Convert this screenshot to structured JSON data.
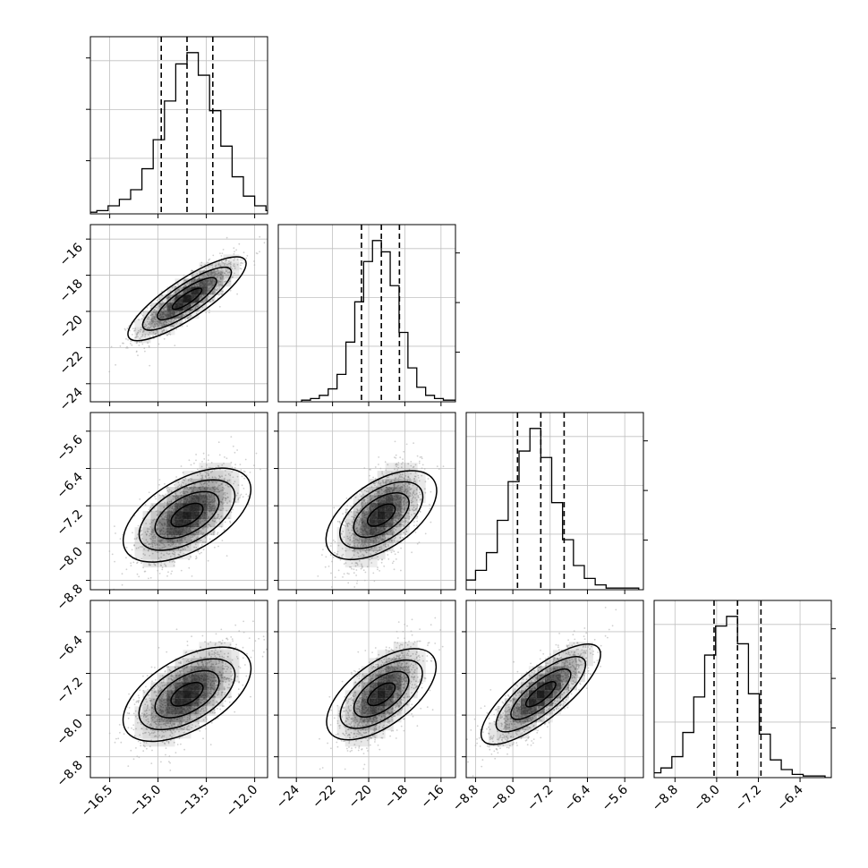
{
  "chart_data": {
    "type": "corner",
    "n_params": 4,
    "params": [
      {
        "median": -14.1,
        "q16": -14.9,
        "q84": -13.3,
        "sigma": 0.75,
        "range": [
          -17.1,
          -11.6
        ]
      },
      {
        "median": -19.3,
        "q16": -20.4,
        "q84": -18.3,
        "sigma": 1.05,
        "range": [
          -25.0,
          -15.2
        ]
      },
      {
        "median": -7.4,
        "q16": -7.9,
        "q84": -6.9,
        "sigma": 0.5,
        "range": [
          -9.0,
          -5.2
        ]
      },
      {
        "median": -7.6,
        "q16": -8.05,
        "q84": -7.15,
        "sigma": 0.45,
        "range": [
          -9.2,
          -5.8
        ]
      }
    ],
    "correlations": [
      [
        1.0,
        0.85,
        0.6,
        0.6
      ],
      [
        0.85,
        1.0,
        0.55,
        0.6
      ],
      [
        0.6,
        0.55,
        1.0,
        0.8
      ],
      [
        0.6,
        0.6,
        0.8,
        1.0
      ]
    ],
    "histograms": [
      {
        "values": [
          1,
          2,
          5,
          9,
          15,
          28,
          46,
          70,
          93,
          100,
          86,
          64,
          42,
          23,
          11,
          5,
          2,
          1
        ]
      },
      {
        "values": [
          1,
          2,
          4,
          8,
          17,
          37,
          62,
          87,
          100,
          93,
          72,
          43,
          21,
          9,
          4,
          2,
          1,
          1
        ]
      },
      {
        "values": [
          1,
          2,
          6,
          12,
          23,
          43,
          67,
          86,
          100,
          82,
          54,
          31,
          15,
          7,
          3,
          1,
          1,
          1
        ]
      },
      {
        "values": [
          1,
          3,
          6,
          13,
          28,
          50,
          76,
          94,
          100,
          83,
          52,
          27,
          11,
          5,
          2,
          1,
          1,
          0
        ]
      }
    ],
    "x_ticks": [
      [
        "-16.5",
        "-15.0",
        "-13.5",
        "-12.0"
      ],
      [
        "-24",
        "-22",
        "-20",
        "-18",
        "-16"
      ],
      [
        "-8.8",
        "-8.0",
        "-7.2",
        "-6.4",
        "-5.6"
      ],
      [
        "-8.8",
        "-8.0",
        "-7.2",
        "-6.4"
      ]
    ],
    "y_ticks": [
      null,
      [
        "-16",
        "-18",
        "-20",
        "-22",
        "-24"
      ],
      [
        "-5.6",
        "-6.4",
        "-7.2",
        "-8.0",
        "-8.8"
      ],
      [
        "-6.4",
        "-7.2",
        "-8.0",
        "-8.8"
      ]
    ],
    "quantiles_shown": [
      "16%",
      "50%",
      "84%"
    ],
    "grid": true,
    "contour_levels": [
      "0.5 sigma",
      "1 sigma",
      "1.5 sigma",
      "2 sigma"
    ],
    "colors": {
      "hist": "#000000",
      "points": "#aaaaaa",
      "grid": "#c0c0c0",
      "density": "#000000"
    }
  }
}
